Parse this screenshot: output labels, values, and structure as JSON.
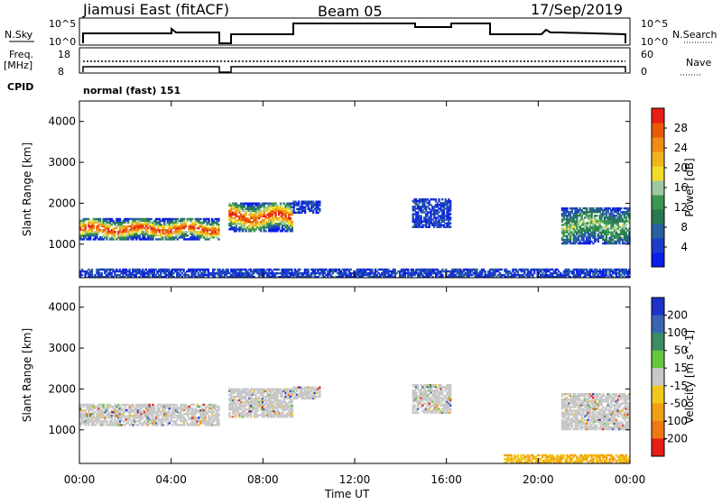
{
  "header": {
    "station": "Jiamusi East (fitACF)",
    "beam": "Beam 05",
    "date": "17/Sep/2019"
  },
  "panels": {
    "nsky_label": "N.Sky",
    "nsky_top": "10^5",
    "nsky_bottom": "10^0",
    "nsearch_label": "N.Search",
    "freq_label": "Freq.",
    "freq_unit": "[MHz]",
    "freq_top": "18",
    "freq_bottom": "8",
    "nave_top": "60",
    "nave_bottom": "0",
    "nave_label": "Nave",
    "cpid_label": "CPID",
    "cpid_value": "normal (fast) 151"
  },
  "chart_data": [
    {
      "type": "heatmap",
      "name": "power",
      "ylabel": "Slant Range [km]",
      "xlabel": "Time UT",
      "xticks": [
        "00:00",
        "04:00",
        "08:00",
        "12:00",
        "16:00",
        "20:00",
        "00:00"
      ],
      "yticks": [
        "1000",
        "2000",
        "3000",
        "4000"
      ],
      "ylim": [
        180,
        4500
      ],
      "xlim_hours": [
        0,
        24
      ],
      "colorbar": {
        "label": "Power [dB]",
        "ticks": [
          "4",
          "8",
          "12",
          "16",
          "20",
          "24",
          "28"
        ],
        "colors": [
          "#0a1ee6",
          "#1e3cc8",
          "#2860a0",
          "#287850",
          "#3c9650",
          "#a0c8a0",
          "#f0dc28",
          "#f0b41e",
          "#f08c14",
          "#e65a0a",
          "#e61e14"
        ]
      },
      "bands": [
        {
          "t0": 0.0,
          "t1": 6.1,
          "r0": 1100,
          "r1": 1600,
          "level": "high"
        },
        {
          "t0": 6.5,
          "t1": 9.3,
          "r0": 1300,
          "r1": 2000,
          "level": "high"
        },
        {
          "t0": 9.3,
          "t1": 10.5,
          "r0": 1750,
          "r1": 2050,
          "level": "low"
        },
        {
          "t0": 14.5,
          "t1": 16.2,
          "r0": 1400,
          "r1": 2100,
          "level": "low"
        },
        {
          "t0": 21.0,
          "t1": 24.0,
          "r0": 1000,
          "r1": 1900,
          "level": "mid"
        },
        {
          "t0": 0.0,
          "t1": 24.0,
          "r0": 180,
          "r1": 400,
          "level": "low"
        }
      ]
    },
    {
      "type": "heatmap",
      "name": "velocity",
      "ylabel": "Slant Range [km]",
      "xlabel": "Time UT",
      "xticks": [
        "00:00",
        "04:00",
        "08:00",
        "12:00",
        "16:00",
        "20:00",
        "00:00"
      ],
      "yticks": [
        "1000",
        "2000",
        "3000",
        "4000"
      ],
      "ylim": [
        180,
        4500
      ],
      "xlim_hours": [
        0,
        24
      ],
      "colorbar": {
        "label": "Velocity [m s^-1]",
        "ticks": [
          "200",
          "100",
          "50",
          "15",
          "-15",
          "-50",
          "-100",
          "-200"
        ],
        "colors": [
          "#1e32c8",
          "#3c64b4",
          "#3c8c64",
          "#64c83c",
          "#c8c8c8",
          "#f0c81e",
          "#f0a014",
          "#f07814",
          "#e61e14"
        ]
      },
      "bands": [
        {
          "t0": 0.0,
          "t1": 6.1,
          "r0": 1100,
          "r1": 1600,
          "level": "zero"
        },
        {
          "t0": 6.5,
          "t1": 9.3,
          "r0": 1300,
          "r1": 2000,
          "level": "zero"
        },
        {
          "t0": 9.3,
          "t1": 10.5,
          "r0": 1750,
          "r1": 2050,
          "level": "zero"
        },
        {
          "t0": 14.5,
          "t1": 16.2,
          "r0": 1400,
          "r1": 2100,
          "level": "zero"
        },
        {
          "t0": 21.0,
          "t1": 24.0,
          "r0": 1000,
          "r1": 1900,
          "level": "zero"
        },
        {
          "t0": 18.5,
          "t1": 24.0,
          "r0": 180,
          "r1": 400,
          "level": "neg"
        }
      ]
    }
  ]
}
